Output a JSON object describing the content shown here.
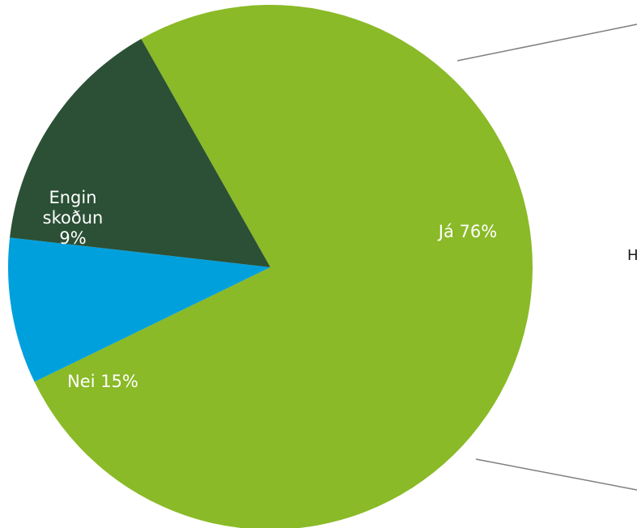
{
  "chart_data": {
    "type": "pie",
    "slices": [
      {
        "label": "Já 76%",
        "value": 76,
        "color": "#8aba27"
      },
      {
        "label": "Engin skoðun 9%",
        "label_lines": [
          "Engin",
          "skoðun",
          "9%"
        ],
        "value": 9,
        "color": "#00a0dd"
      },
      {
        "label": "Nei 15%",
        "value": 15,
        "color": "#2b5035"
      }
    ]
  },
  "side_text": "H",
  "connector_color": "#7f7f7f"
}
